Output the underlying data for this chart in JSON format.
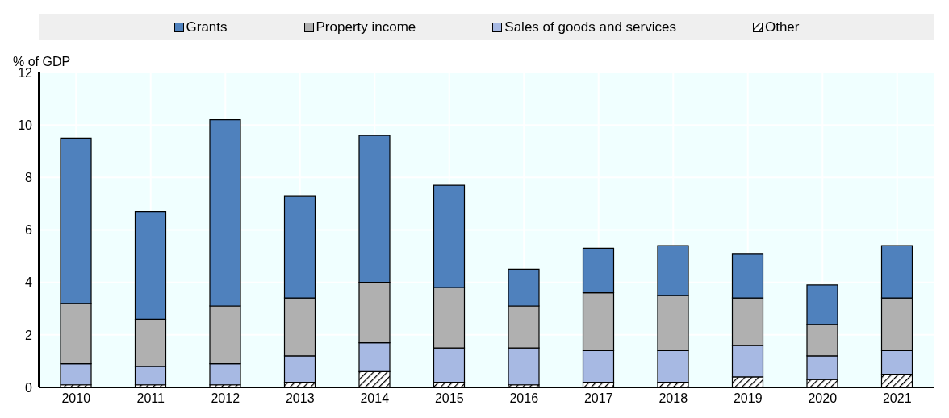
{
  "chart_data": {
    "type": "bar",
    "stacked": true,
    "ylabel": "% of GDP",
    "categories": [
      "2010",
      "2011",
      "2012",
      "2013",
      "2014",
      "2015",
      "2016",
      "2017",
      "2018",
      "2019",
      "2020",
      "2021"
    ],
    "series": [
      {
        "name": "Other",
        "color": "#000000",
        "values": [
          0.1,
          0.1,
          0.1,
          0.2,
          0.6,
          0.2,
          0.1,
          0.2,
          0.2,
          0.4,
          0.3,
          0.5
        ]
      },
      {
        "name": "Sales of goods and services",
        "color": "#a7b9e3",
        "values": [
          0.8,
          0.7,
          0.8,
          1.0,
          1.1,
          1.3,
          1.4,
          1.2,
          1.2,
          1.2,
          0.9,
          0.9
        ]
      },
      {
        "name": "Property income",
        "color": "#b0b0b0",
        "values": [
          2.3,
          1.8,
          2.2,
          2.2,
          2.3,
          2.3,
          1.6,
          2.2,
          2.1,
          1.8,
          1.2,
          2.0
        ]
      },
      {
        "name": "Grants",
        "color": "#4f81bd",
        "values": [
          6.3,
          4.1,
          7.1,
          3.9,
          5.6,
          3.9,
          1.4,
          1.7,
          1.9,
          1.7,
          1.5,
          2.0
        ]
      }
    ],
    "ylim": [
      0,
      12
    ],
    "yticks": [
      0,
      2,
      4,
      6,
      8,
      10,
      12
    ],
    "grid": true,
    "legend": "top"
  }
}
